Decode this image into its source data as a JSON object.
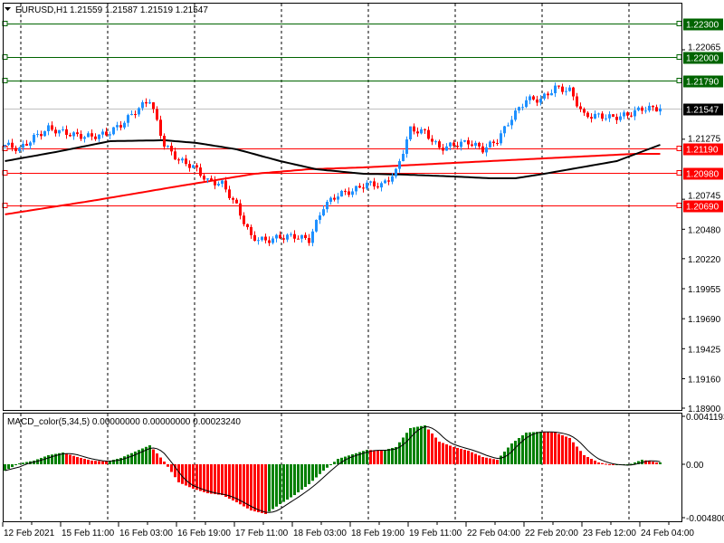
{
  "header": {
    "symbol_timeframe": "EURUSD,H1",
    "ohlc": "1.21559 1.21587 1.21519 1.21547"
  },
  "macd_header": {
    "label": "MACD_color(5,34,5) 0.00000000 0.00000000 0.00023240"
  },
  "colors": {
    "bull": "#1e90ff",
    "bear": "#ff0000",
    "ma_slow": "#000000",
    "ma_fast": "#ff0000",
    "resistance": "#006400",
    "support": "#ff0000",
    "current": "#000000",
    "macd_up": "#008000",
    "macd_down": "#ff0000"
  },
  "chart_data": [
    {
      "type": "candlestick",
      "title": "EURUSD,H1",
      "sample_step_candles": 4,
      "candle_count": 182,
      "close_samples": [
        1.21226,
        1.21186,
        1.2129,
        1.2137,
        1.21338,
        1.21306,
        1.21298,
        1.21322,
        1.21402,
        1.21522,
        1.21626,
        1.21226,
        1.2109,
        1.21034,
        1.20906,
        1.20882,
        1.20683,
        1.20411,
        1.20379,
        1.20411,
        1.20419,
        1.20387,
        1.20683,
        1.20787,
        1.20819,
        1.20882,
        1.20866,
        1.20986,
        1.21362,
        1.21338,
        1.21194,
        1.21226,
        1.2125,
        1.21186,
        1.21266,
        1.21466,
        1.21626,
        1.21626,
        1.21729,
        1.21705,
        1.21482,
        1.21482,
        1.21466,
        1.2149,
        1.21546,
        1.21547
      ],
      "ma_slow": [
        [
          0,
          1.21082
        ],
        [
          14,
          1.21162
        ],
        [
          29,
          1.21258
        ],
        [
          44,
          1.21266
        ],
        [
          53,
          1.21242
        ],
        [
          64,
          1.21186
        ],
        [
          76,
          1.21082
        ],
        [
          86,
          1.2101
        ],
        [
          99,
          1.2097
        ],
        [
          111,
          1.20962
        ],
        [
          124,
          1.20946
        ],
        [
          134,
          1.2093
        ],
        [
          141,
          1.2093
        ],
        [
          149,
          1.2097
        ],
        [
          159,
          1.21026
        ],
        [
          169,
          1.21082
        ],
        [
          181,
          1.21226
        ]
      ],
      "ma_fast": [
        [
          0,
          1.20611
        ],
        [
          24,
          1.20731
        ],
        [
          49,
          1.20866
        ],
        [
          69,
          1.2097
        ],
        [
          84,
          1.2101
        ],
        [
          99,
          1.21026
        ],
        [
          124,
          1.21066
        ],
        [
          149,
          1.21106
        ],
        [
          174,
          1.21146
        ],
        [
          181,
          1.21146
        ]
      ],
      "levels": [
        {
          "price": 1.223,
          "label": "1.22300",
          "kind": "resistance"
        },
        {
          "price": 1.22,
          "label": "1.22000",
          "kind": "resistance"
        },
        {
          "price": 1.2179,
          "label": "1.21790",
          "kind": "resistance"
        },
        {
          "price": 1.21547,
          "label": "1.21547",
          "kind": "current"
        },
        {
          "price": 1.2119,
          "label": "1.21190",
          "kind": "support"
        },
        {
          "price": 1.2098,
          "label": "1.20980",
          "kind": "support"
        },
        {
          "price": 1.2069,
          "label": "1.20690",
          "kind": "support"
        }
      ],
      "y_ticks": [
        "1.22065",
        "1.21275",
        "1.20745",
        "1.20480",
        "1.20220",
        "1.19955",
        "1.19690",
        "1.19425",
        "1.19160",
        "1.18900"
      ],
      "x_ticks": [
        "12 Feb 2021",
        "15 Feb 11:00",
        "16 Feb 03:00",
        "16 Feb 19:00",
        "17 Feb 11:00",
        "18 Feb 03:00",
        "18 Feb 19:00",
        "19 Feb 11:00",
        "22 Feb 04:00",
        "22 Feb 20:00",
        "23 Feb 12:00",
        "24 Feb 04:00"
      ]
    },
    {
      "type": "bar",
      "title": "MACD_color(5,34,5)",
      "sample_step_candles": 4,
      "histogram_samples": [
        -0.00059,
        8e-05,
        0.00034,
        0.00084,
        0.00109,
        0.00067,
        0.00034,
        0.00025,
        0.00059,
        0.00118,
        0.00176,
        0.00025,
        -0.00168,
        -0.00227,
        -0.00269,
        -0.00286,
        -0.00353,
        -0.00429,
        -0.00462,
        -0.0037,
        -0.00286,
        -0.00185,
        -0.00059,
        0.0005,
        0.00092,
        0.00134,
        0.00126,
        0.0016,
        0.00336,
        0.00361,
        0.0021,
        0.0016,
        0.00126,
        0.00067,
        0.00042,
        0.00193,
        0.00294,
        0.00303,
        0.00294,
        0.00244,
        0.00084,
        0.00017,
        -8e-05,
        -8e-05,
        0.00042,
        0.00017
      ],
      "y_ticks": [
        "0.0041193",
        "0.00",
        "-0.004800"
      ],
      "ylim": [
        -0.0048,
        0.0041193
      ]
    }
  ]
}
